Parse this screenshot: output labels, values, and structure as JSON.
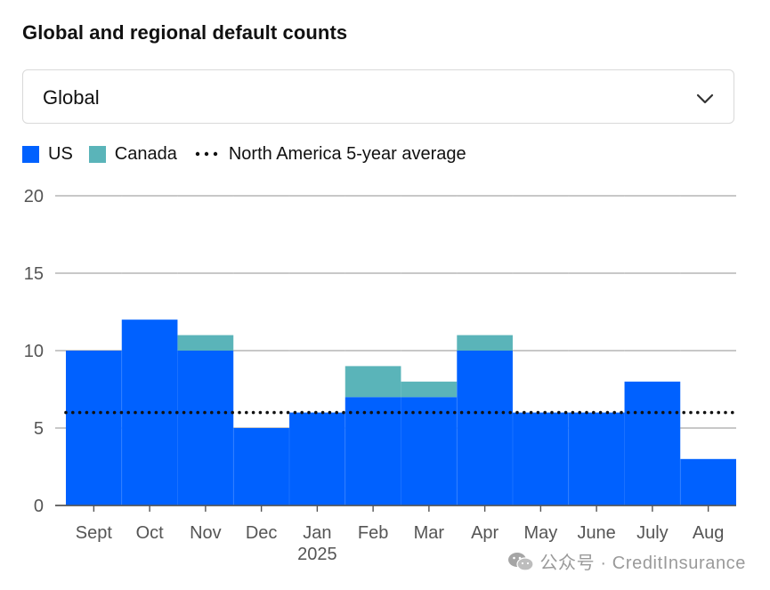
{
  "title": "Global and regional default counts",
  "region_select": {
    "value": "Global"
  },
  "colors": {
    "us": "#0061ff",
    "canada": "#5ab4b9",
    "grid": "#a7a7a7",
    "axis": "#555555",
    "average": "#111111"
  },
  "watermark": {
    "text": "公众号 · CreditInsurance"
  },
  "chart_data": {
    "type": "bar",
    "stacked": true,
    "title": "Global and regional default counts",
    "categories": [
      "Sept",
      "Oct",
      "Nov",
      "Dec",
      "Jan",
      "Feb",
      "Mar",
      "Apr",
      "May",
      "June",
      "July",
      "Aug"
    ],
    "year_label": {
      "category": "Jan",
      "text": "2025"
    },
    "series": [
      {
        "name": "US",
        "values": [
          10,
          12,
          10,
          5,
          6,
          7,
          7,
          10,
          6,
          6,
          8,
          3
        ]
      },
      {
        "name": "Canada",
        "values": [
          0,
          0,
          1,
          0,
          0,
          2,
          1,
          1,
          0,
          0,
          0,
          0
        ]
      }
    ],
    "reference_line": {
      "name": "North America 5-year average",
      "value": 6,
      "style": "dotted"
    },
    "yticks": [
      0,
      5,
      10,
      15,
      20
    ],
    "ylim": [
      0,
      20
    ],
    "xlabel": "",
    "ylabel": "",
    "grid": true,
    "legend": "top-left"
  }
}
